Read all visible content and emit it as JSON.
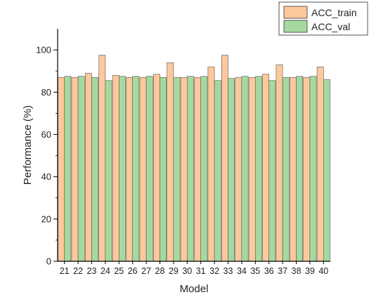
{
  "chart_data": {
    "type": "bar",
    "xlabel": "Model",
    "ylabel": "Performance (%)",
    "ylim": [
      0,
      110
    ],
    "yticks": [
      0,
      20,
      40,
      60,
      80,
      100
    ],
    "grid": false,
    "legend_position": "top-right",
    "categories": [
      "21",
      "22",
      "23",
      "24",
      "25",
      "26",
      "27",
      "28",
      "29",
      "30",
      "31",
      "32",
      "33",
      "34",
      "35",
      "36",
      "37",
      "38",
      "39",
      "40"
    ],
    "series": [
      {
        "name": "ACC_train",
        "color": "#fcc89c",
        "values": [
          87,
          87,
          89,
          97.5,
          88,
          87,
          87,
          88.5,
          94,
          87,
          87,
          92,
          97.5,
          87,
          87,
          88.5,
          93,
          87,
          87,
          92
        ]
      },
      {
        "name": "ACC_val",
        "color": "#a6d9a0",
        "values": [
          87.5,
          87.5,
          87,
          85.5,
          87.5,
          87.5,
          87.5,
          87,
          87,
          87.5,
          87.5,
          85.5,
          86.5,
          87.5,
          87.5,
          85.5,
          87,
          87.5,
          87.5,
          86
        ]
      }
    ]
  }
}
